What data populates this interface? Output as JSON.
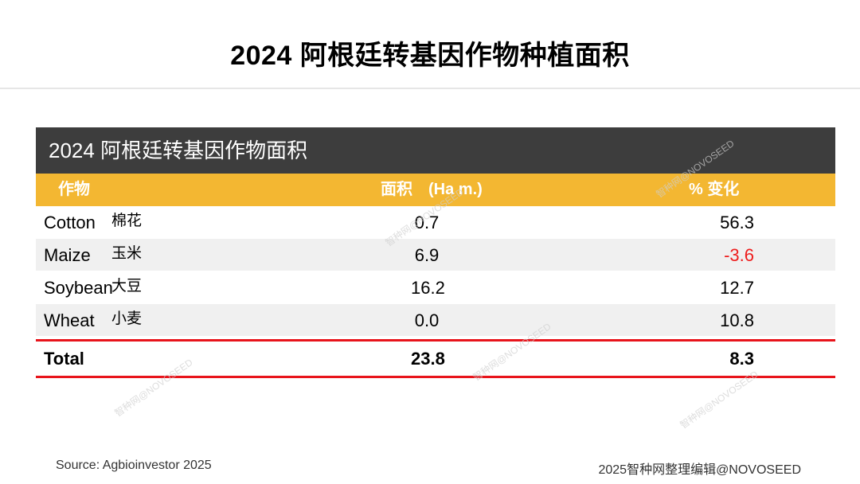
{
  "title": "2024 阿根廷转基因作物种植面积",
  "table": {
    "caption": "2024 阿根廷转基因作物面积",
    "headers": {
      "crop": "作物",
      "area": "面积　(Ha m.)",
      "pct": "%  变化"
    },
    "rows": [
      {
        "en": "Cotton",
        "cn": "棉花",
        "area": "0.7",
        "pct": "56.3"
      },
      {
        "en": "Maize",
        "cn": "玉米",
        "area": "6.9",
        "pct": "-3.6"
      },
      {
        "en": "Soybean",
        "cn": "大豆",
        "area": "16.2",
        "pct": "12.7"
      },
      {
        "en": "Wheat",
        "cn": "小麦",
        "area": "0.0",
        "pct": "10.8"
      }
    ],
    "total": {
      "label": "Total",
      "area": "23.8",
      "pct": "8.3"
    }
  },
  "watermark": "智种网@NOVOSEED",
  "footer": {
    "source": "Source: Agbioinvestor 2025",
    "credit": "2025智种网整理编辑@NOVOSEED"
  },
  "colors": {
    "header_dark": "#3d3d3d",
    "header_accent": "#f3b732",
    "negative": "#ee1c1c",
    "rule": "#e8141b"
  }
}
